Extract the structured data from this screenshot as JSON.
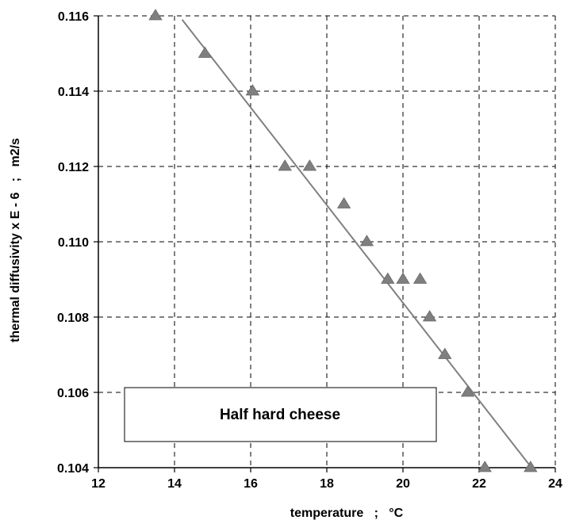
{
  "chart_data": {
    "type": "scatter",
    "title": "",
    "xlabel": "temperature   ;   °C",
    "ylabel": "thermal diffusivity x E - 6   ;   m2/s",
    "xlim": [
      12,
      24
    ],
    "ylim": [
      0.104,
      0.116
    ],
    "xticks": [
      "12",
      "14",
      "16",
      "18",
      "20",
      "22",
      "24"
    ],
    "yticks": [
      "0.104",
      "0.106",
      "0.108",
      "0.110",
      "0.112",
      "0.114",
      "0.116"
    ],
    "grid": true,
    "series": [
      {
        "marker": "triangle",
        "color": "#7f7f7f",
        "points": [
          {
            "x": 13.5,
            "y": 0.116
          },
          {
            "x": 14.8,
            "y": 0.115
          },
          {
            "x": 16.05,
            "y": 0.114
          },
          {
            "x": 16.9,
            "y": 0.112
          },
          {
            "x": 17.55,
            "y": 0.112
          },
          {
            "x": 18.45,
            "y": 0.111
          },
          {
            "x": 19.05,
            "y": 0.11
          },
          {
            "x": 19.6,
            "y": 0.109
          },
          {
            "x": 20.0,
            "y": 0.109
          },
          {
            "x": 20.45,
            "y": 0.109
          },
          {
            "x": 20.7,
            "y": 0.108
          },
          {
            "x": 21.1,
            "y": 0.107
          },
          {
            "x": 21.7,
            "y": 0.106
          },
          {
            "x": 22.15,
            "y": 0.104
          },
          {
            "x": 23.35,
            "y": 0.104
          }
        ]
      }
    ],
    "trendline": {
      "type": "linear",
      "color": "#808080",
      "from": {
        "x": 14.2,
        "y": 0.1159
      },
      "to": {
        "x": 23.3,
        "y": 0.1041
      }
    },
    "annotation": {
      "text": "Half hard cheese"
    }
  }
}
